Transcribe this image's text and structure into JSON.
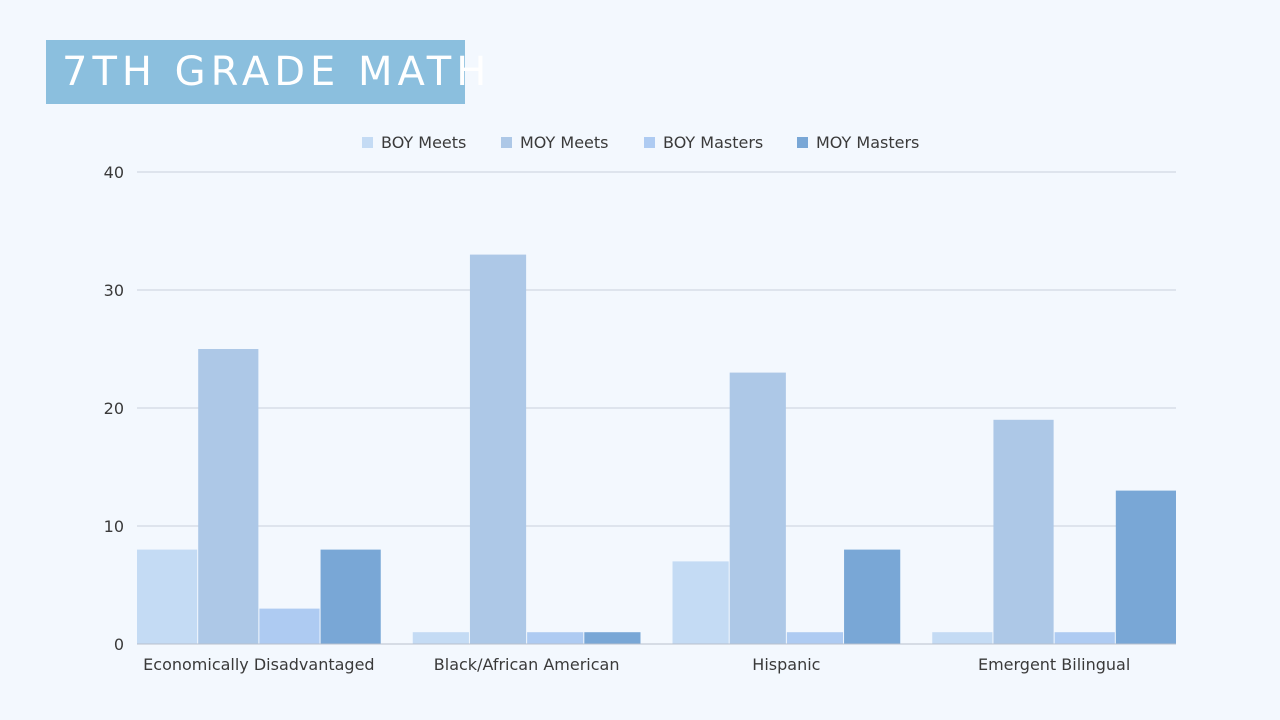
{
  "title": "7TH GRADE MATH",
  "chart_data": {
    "type": "bar",
    "categories": [
      "Economically Disadvantaged",
      "Black/African American",
      "Hispanic",
      "Emergent Bilingual"
    ],
    "series": [
      {
        "name": "BOY Meets",
        "color": "#c4dbf4",
        "values": [
          8,
          1,
          7,
          1
        ]
      },
      {
        "name": "MOY Meets",
        "color": "#adc8e7",
        "values": [
          25,
          33,
          23,
          19
        ]
      },
      {
        "name": "BOY Masters",
        "color": "#aecbf2",
        "values": [
          3,
          1,
          1,
          1
        ]
      },
      {
        "name": "MOY Masters",
        "color": "#79a7d6",
        "values": [
          8,
          1,
          8,
          13
        ]
      }
    ],
    "ylim": [
      0,
      40
    ],
    "yticks": [
      0,
      10,
      20,
      30,
      40
    ],
    "grid": true,
    "legend": "top"
  }
}
